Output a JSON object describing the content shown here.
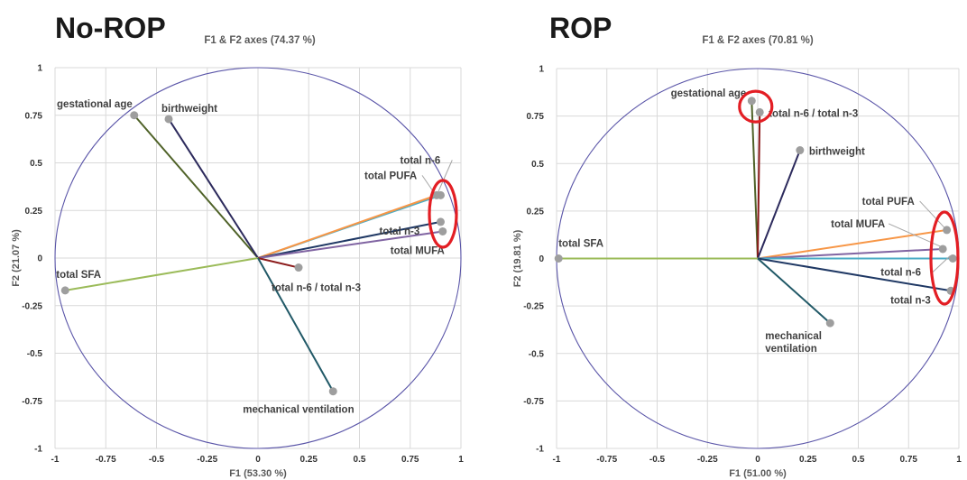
{
  "chart_data": [
    {
      "type": "scatter",
      "title": "No-ROP",
      "subtitle": "F1 & F2 axes (74.37 %)",
      "xlabel": "F1 (53.30 %)",
      "ylabel": "F2 (21.07 %)",
      "xlim": [
        -1,
        1
      ],
      "ylim": [
        -1,
        1
      ],
      "xticks": [
        "-1",
        "-0.75",
        "-0.5",
        "-0.25",
        "0",
        "0.25",
        "0.5",
        "0.75",
        "1"
      ],
      "yticks": [
        "1",
        "0.75",
        "0.5",
        "0.25",
        "0",
        "-0.25",
        "-0.5",
        "-0.75",
        "-1"
      ],
      "grid": true,
      "variables": [
        {
          "label": "gestational age",
          "x": -0.61,
          "y": 0.75,
          "color": "#4f6228"
        },
        {
          "label": "birthweight",
          "x": -0.44,
          "y": 0.73,
          "color": "#2c2a5c"
        },
        {
          "label": "total n-6",
          "x": 0.9,
          "y": 0.33,
          "color": "#4bacc6"
        },
        {
          "label": "total PUFA",
          "x": 0.88,
          "y": 0.33,
          "color": "#f79646"
        },
        {
          "label": "total n-3",
          "x": 0.9,
          "y": 0.19,
          "color": "#1f3864"
        },
        {
          "label": "total MUFA",
          "x": 0.91,
          "y": 0.14,
          "color": "#8064a2"
        },
        {
          "label": "total SFA",
          "x": -0.95,
          "y": -0.17,
          "color": "#9bbb59"
        },
        {
          "label": "total n-6 / total n-3",
          "x": 0.2,
          "y": -0.05,
          "color": "#8b1a1a"
        },
        {
          "label": "mechanical ventilation",
          "x": 0.37,
          "y": -0.7,
          "color": "#215967"
        }
      ]
    },
    {
      "type": "scatter",
      "title": "ROP",
      "subtitle": "F1 & F2 axes (70.81 %)",
      "xlabel": "F1 (51.00 %)",
      "ylabel": "F2 (19.81 %)",
      "xlim": [
        -1,
        1
      ],
      "ylim": [
        -1,
        1
      ],
      "xticks": [
        "-1",
        "-0.75",
        "-0.5",
        "-0.25",
        "0",
        "0.25",
        "0.5",
        "0.75",
        "1"
      ],
      "yticks": [
        "1",
        "0.75",
        "0.5",
        "0.25",
        "0",
        "-0.25",
        "-0.5",
        "-0.75",
        "-1"
      ],
      "grid": true,
      "variables": [
        {
          "label": "gestational age",
          "x": -0.03,
          "y": 0.83,
          "color": "#4f6228"
        },
        {
          "label": "total n-6 / total n-3",
          "x": 0.01,
          "y": 0.77,
          "color": "#8b1a1a"
        },
        {
          "label": "birthweight",
          "x": 0.21,
          "y": 0.57,
          "color": "#2c2a5c"
        },
        {
          "label": "total PUFA",
          "x": 0.94,
          "y": 0.15,
          "color": "#f79646"
        },
        {
          "label": "total MUFA",
          "x": 0.92,
          "y": 0.05,
          "color": "#8064a2"
        },
        {
          "label": "total n-6",
          "x": 0.97,
          "y": 0.0,
          "color": "#4bacc6"
        },
        {
          "label": "total n-3",
          "x": 0.96,
          "y": -0.17,
          "color": "#1f3864"
        },
        {
          "label": "total SFA",
          "x": -0.99,
          "y": 0.0,
          "color": "#9bbb59"
        },
        {
          "label": "mechanical ventilation",
          "x": 0.36,
          "y": -0.34,
          "color": "#215967"
        }
      ]
    }
  ],
  "colors": {
    "correlation_circle": "#5a55a8",
    "highlight_ellipse": "#e31e24",
    "point": "#9e9e9e",
    "grid": "#d9d9d9"
  }
}
